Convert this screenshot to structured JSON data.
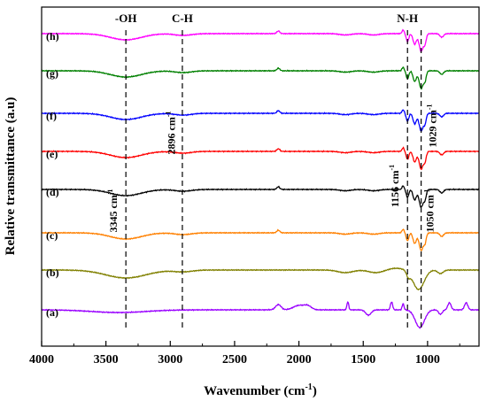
{
  "chart_data": {
    "type": "line",
    "xlabel": "Wavenumber (cm",
    "xlabel_sup": "-1",
    "xlabel_close": ")",
    "ylabel": "Relative transmittance (a.u)",
    "xlim": [
      4000,
      600
    ],
    "x_reversed": true,
    "y_ticks_shown": false,
    "grid": false,
    "xticks": [
      4000,
      3500,
      3000,
      2500,
      2000,
      1500,
      1000
    ],
    "xtick_labels": [
      "4000",
      "3500",
      "3000",
      "2500",
      "2000",
      "1500",
      "1000"
    ],
    "series": [
      {
        "name": "(h)",
        "color": "#ff00ff",
        "profile": "chitosan_composite"
      },
      {
        "name": "(g)",
        "color": "#008000",
        "profile": "chitosan_composite"
      },
      {
        "name": "(f)",
        "color": "#0000ff",
        "profile": "chitosan_composite"
      },
      {
        "name": "(e)",
        "color": "#ff0000",
        "profile": "chitosan_composite"
      },
      {
        "name": "(d)",
        "color": "#000000",
        "profile": "chitosan_composite"
      },
      {
        "name": "(c)",
        "color": "#ff8000",
        "profile": "chitosan_composite"
      },
      {
        "name": "(b)",
        "color": "#808000",
        "profile": "chitosan_broad"
      },
      {
        "name": "(a)",
        "color": "#9900ff",
        "profile": "filler"
      }
    ],
    "reference_lines": [
      {
        "x": 3345,
        "top_label": "-OH"
      },
      {
        "x": 2906,
        "top_label": "C-H"
      },
      {
        "x": 1156,
        "top_label": "N-H"
      },
      {
        "x": 1050,
        "top_label": ""
      }
    ],
    "annotations": [
      {
        "base": "3345 cm",
        "sup": "-1",
        "x": 3345
      },
      {
        "base": "2896 cm",
        "sup": "-1",
        "x": 2896
      },
      {
        "base": "1156 cm",
        "sup": "-1",
        "x": 1156
      },
      {
        "base": "1029 cm",
        "sup": "-1",
        "x": 1029
      },
      {
        "base": "1050 cm",
        "sup": "-1",
        "x": 1050
      }
    ]
  }
}
